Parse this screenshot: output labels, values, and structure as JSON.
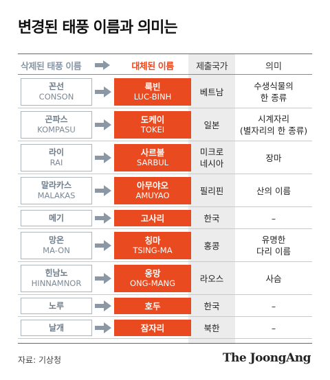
{
  "title": "변경된 태풍 이름과 의미는",
  "headers": {
    "old": "삭제된 태풍 이름",
    "new": "대체된 이름",
    "country": "제출국가",
    "meaning": "의미"
  },
  "rows": [
    {
      "old_ko": "꼰선",
      "old_en": "CONSON",
      "new_ko": "룩빈",
      "new_en": "LUC-BINH",
      "country": "베트남",
      "meaning": "수생식물의\n한 종류"
    },
    {
      "old_ko": "곤파스",
      "old_en": "KOMPASU",
      "new_ko": "도케이",
      "new_en": "TOKEI",
      "country": "일본",
      "meaning": "시계자리\n(별자리의 한 종류)"
    },
    {
      "old_ko": "라이",
      "old_en": "RAI",
      "new_ko": "사르불",
      "new_en": "SARBUL",
      "country": "미크로\n네시아",
      "meaning": "장마"
    },
    {
      "old_ko": "말라카스",
      "old_en": "MALAKAS",
      "new_ko": "아무야오",
      "new_en": "AMUYAO",
      "country": "필리핀",
      "meaning": "산의 이름"
    },
    {
      "old_ko": "메기",
      "old_en": "",
      "new_ko": "고사리",
      "new_en": "",
      "country": "한국",
      "meaning": "–"
    },
    {
      "old_ko": "망온",
      "old_en": "MA-ON",
      "new_ko": "칭마",
      "new_en": "TSING-MA",
      "country": "홍콩",
      "meaning": "유명한\n다리 이름"
    },
    {
      "old_ko": "힌남노",
      "old_en": "HINNAMNOR",
      "new_ko": "옹망",
      "new_en": "ONG-MANG",
      "country": "라오스",
      "meaning": "사슴"
    },
    {
      "old_ko": "노루",
      "old_en": "",
      "new_ko": "호두",
      "new_en": "",
      "country": "한국",
      "meaning": "–"
    },
    {
      "old_ko": "날개",
      "old_en": "",
      "new_ko": "잠자리",
      "new_en": "",
      "country": "북한",
      "meaning": "–"
    }
  ],
  "source": "자료: 기상청",
  "brand": "The JoongAng",
  "colors": {
    "accent": "#ea4a1f",
    "old_text": "#6e7c8a",
    "country_column": "#ececec",
    "arrow": "#8a98a6"
  }
}
